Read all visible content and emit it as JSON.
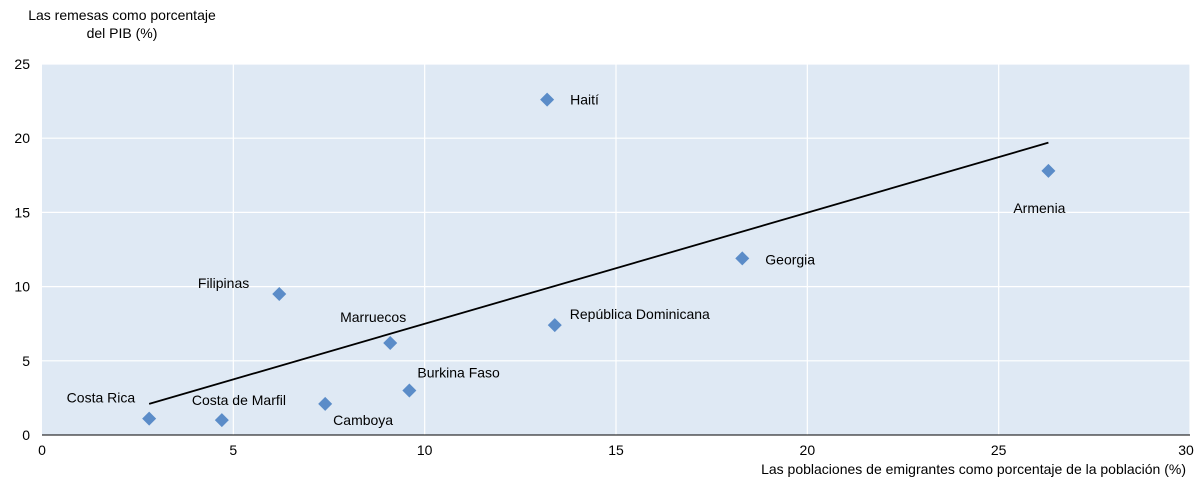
{
  "chart_data": {
    "type": "scatter",
    "ylabel_lines": [
      "Las remesas como porcentaje",
      "del PIB (%)"
    ],
    "xlabel": "Las poblaciones de emigrantes como porcentaje de la población (%)",
    "xlim": [
      0,
      30
    ],
    "ylim": [
      0,
      25
    ],
    "xticks": [
      0,
      5,
      10,
      15,
      20,
      25,
      30
    ],
    "yticks": [
      0,
      5,
      10,
      15,
      20,
      25
    ],
    "grid": true,
    "marker_color": "#5b8cc8",
    "background": "#dfe9f4",
    "points": [
      {
        "label": "Costa Rica",
        "x": 2.8,
        "y": 1.1
      },
      {
        "label": "Costa de Marfil",
        "x": 4.7,
        "y": 1.0
      },
      {
        "label": "Filipinas",
        "x": 6.2,
        "y": 9.5
      },
      {
        "label": "Camboya",
        "x": 7.4,
        "y": 2.1
      },
      {
        "label": "Marruecos",
        "x": 9.1,
        "y": 6.2
      },
      {
        "label": "Burkina Faso",
        "x": 9.6,
        "y": 3.0
      },
      {
        "label": "Haití",
        "x": 13.2,
        "y": 22.6
      },
      {
        "label": "República Dominicana",
        "x": 13.4,
        "y": 7.4
      },
      {
        "label": "Georgia",
        "x": 18.3,
        "y": 11.9
      },
      {
        "label": "Armenia",
        "x": 26.3,
        "y": 17.8
      }
    ],
    "trendline": {
      "x": [
        2.8,
        26.3
      ],
      "y": [
        2.1,
        19.7
      ]
    }
  }
}
